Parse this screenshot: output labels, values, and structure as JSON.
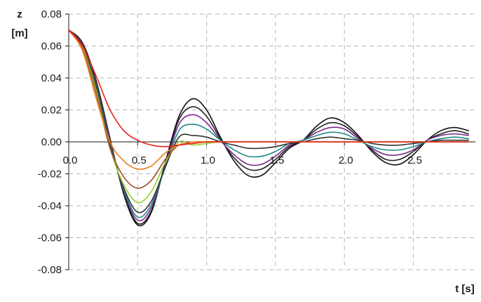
{
  "chart_data": {
    "type": "line",
    "title": "",
    "ylabel_line1": "z",
    "ylabel_line2": "[m]",
    "xlabel": "t [s]",
    "xlim": [
      0,
      2.95
    ],
    "ylim": [
      -0.08,
      0.08
    ],
    "x_ticks": [
      {
        "value": 0.0,
        "label": "0.0"
      },
      {
        "value": 0.5,
        "label": "0.5"
      },
      {
        "value": 1.0,
        "label": "1.0"
      },
      {
        "value": 1.5,
        "label": "1.5"
      },
      {
        "value": 2.0,
        "label": "2.0"
      },
      {
        "value": 2.5,
        "label": "2.5"
      }
    ],
    "y_ticks": [
      {
        "value": 0.08,
        "label": "0.08"
      },
      {
        "value": 0.06,
        "label": "0.06"
      },
      {
        "value": 0.04,
        "label": "0.04"
      },
      {
        "value": 0.02,
        "label": "0.02"
      },
      {
        "value": 0.0,
        "label": "0.00"
      },
      {
        "value": -0.02,
        "label": "-0.02"
      },
      {
        "value": -0.04,
        "label": "-0.04"
      },
      {
        "value": -0.06,
        "label": "-0.06"
      },
      {
        "value": -0.08,
        "label": "-0.08"
      }
    ],
    "grid": true,
    "legend": "none",
    "x": [
      0,
      0.1,
      0.2,
      0.3,
      0.4,
      0.5,
      0.6,
      0.7,
      0.8,
      0.9,
      1.0,
      1.1,
      1.2,
      1.3,
      1.4,
      1.5,
      1.6,
      1.7,
      1.8,
      1.9,
      2.0,
      2.1,
      2.2,
      2.3,
      2.4,
      2.5,
      2.6,
      2.7,
      2.8,
      2.9
    ],
    "series": [
      {
        "color": "#111111",
        "values": [
          0.07,
          0.062,
          0.038,
          0.002,
          -0.033,
          -0.052,
          -0.044,
          -0.013,
          0.016,
          0.027,
          0.02,
          0.003,
          -0.012,
          -0.021,
          -0.021,
          -0.013,
          -0.004,
          0.001,
          0.01,
          0.015,
          0.012,
          0.004,
          -0.006,
          -0.013,
          -0.014,
          -0.008,
          0.001,
          0.007,
          0.009,
          0.007
        ]
      },
      {
        "color": "#222222",
        "values": [
          0.07,
          0.061,
          0.037,
          0.001,
          -0.032,
          -0.051,
          -0.043,
          -0.014,
          0.014,
          0.022,
          0.016,
          0.002,
          -0.01,
          -0.017,
          -0.017,
          -0.011,
          -0.003,
          0.001,
          0.008,
          0.012,
          0.01,
          0.003,
          -0.005,
          -0.011,
          -0.011,
          -0.006,
          0.001,
          0.005,
          0.007,
          0.005
        ]
      },
      {
        "color": "#7b2a8c",
        "values": [
          0.07,
          0.061,
          0.036,
          0.0,
          -0.031,
          -0.049,
          -0.041,
          -0.015,
          0.011,
          0.017,
          0.012,
          0.001,
          -0.008,
          -0.014,
          -0.014,
          -0.009,
          -0.002,
          0.001,
          0.006,
          0.009,
          0.008,
          0.002,
          -0.004,
          -0.008,
          -0.008,
          -0.005,
          0.001,
          0.004,
          0.005,
          0.004
        ]
      },
      {
        "color": "#1c8a88",
        "values": [
          0.07,
          0.06,
          0.035,
          -0.001,
          -0.03,
          -0.047,
          -0.039,
          -0.016,
          0.007,
          0.011,
          0.008,
          0.001,
          -0.005,
          -0.009,
          -0.009,
          -0.006,
          -0.001,
          0.001,
          0.004,
          0.006,
          0.005,
          0.001,
          -0.003,
          -0.005,
          -0.005,
          -0.003,
          0.0,
          0.002,
          0.003,
          0.002
        ]
      },
      {
        "color": "#333333",
        "values": [
          0.07,
          0.06,
          0.034,
          -0.002,
          -0.029,
          -0.044,
          -0.037,
          -0.016,
          0.003,
          0.004,
          0.003,
          0.0,
          -0.002,
          -0.004,
          -0.004,
          -0.003,
          -0.001,
          0.0,
          0.002,
          0.003,
          0.002,
          0.001,
          -0.001,
          -0.002,
          -0.002,
          -0.001,
          0.0,
          0.001,
          0.001,
          0.001
        ]
      },
      {
        "color": "#9acd32",
        "values": [
          0.07,
          0.059,
          0.032,
          -0.004,
          -0.027,
          -0.038,
          -0.031,
          -0.013,
          0.0,
          -0.002,
          -0.001,
          0.0,
          0.0,
          0.0,
          0.0,
          0.0,
          0.0,
          0.0,
          0.0,
          0.0,
          0.0,
          0.0,
          0.0,
          0.0,
          0.0,
          0.0,
          0.0,
          0.0,
          0.0,
          0.0
        ]
      },
      {
        "color": "#a0522d",
        "values": [
          0.07,
          0.058,
          0.03,
          -0.004,
          -0.022,
          -0.029,
          -0.024,
          -0.011,
          -0.002,
          -0.001,
          0.0,
          0.0,
          0.0,
          0.0,
          0.0,
          0.0,
          0.0,
          0.0,
          0.0,
          0.0,
          0.0,
          0.0,
          0.0,
          0.0,
          0.0,
          0.0,
          0.0,
          0.0,
          0.0,
          0.0
        ]
      },
      {
        "color": "#f07f1a",
        "values": [
          0.07,
          0.057,
          0.027,
          0.0,
          -0.012,
          -0.017,
          -0.015,
          -0.007,
          -0.002,
          0.0,
          0.0,
          0.0,
          0.0,
          0.0,
          0.0,
          0.0,
          0.0,
          0.0,
          0.0,
          0.0,
          0.0,
          0.0,
          0.0,
          0.0,
          0.0,
          0.0,
          0.0,
          0.0,
          0.0,
          0.0
        ]
      },
      {
        "color": "#e8231c",
        "values": [
          0.07,
          0.06,
          0.041,
          0.02,
          0.007,
          0.001,
          -0.002,
          -0.003,
          -0.002,
          -0.001,
          0.0,
          0.0,
          0.0,
          0.0,
          0.0,
          0.0,
          0.0,
          0.0,
          0.0,
          0.0,
          0.0,
          0.0,
          0.0,
          0.0,
          0.0,
          0.0,
          0.0,
          0.0,
          0.0,
          0.0
        ]
      }
    ]
  }
}
